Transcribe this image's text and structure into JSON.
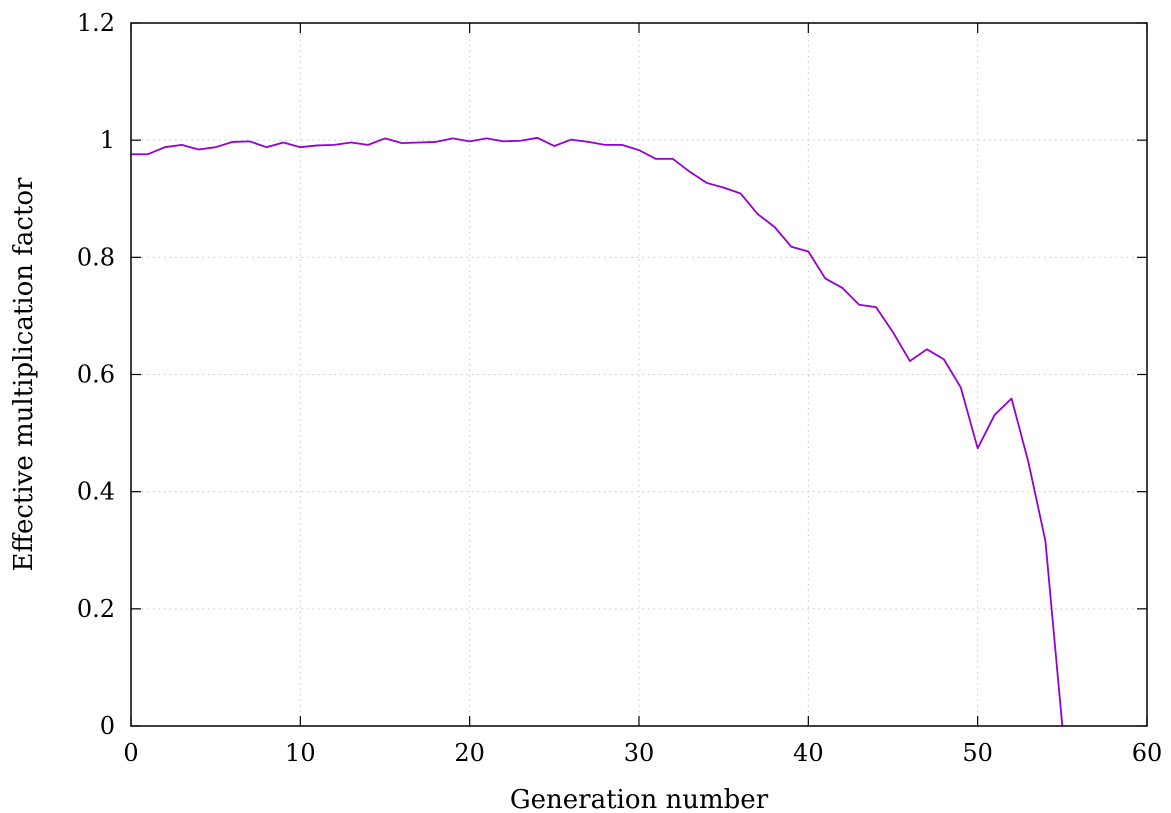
{
  "chart_data": {
    "type": "line",
    "title": "",
    "xlabel": "Generation number",
    "ylabel": "Effective multiplication factor",
    "xlim": [
      0,
      60
    ],
    "ylim": [
      0,
      1.2
    ],
    "xticks": [
      0,
      10,
      20,
      30,
      40,
      50,
      60
    ],
    "yticks": [
      0,
      0.2,
      0.4,
      0.6,
      0.8,
      1,
      1.2
    ],
    "xtick_labels": [
      "0",
      "10",
      "20",
      "30",
      "40",
      "50",
      "60"
    ],
    "ytick_labels": [
      "0",
      "0.2",
      "0.4",
      "0.6",
      "0.8",
      "1",
      "1.2"
    ],
    "grid": true,
    "legend": "none",
    "series": [
      {
        "color": "#9400d3",
        "x": [
          0,
          1,
          2,
          3,
          4,
          5,
          6,
          7,
          8,
          9,
          10,
          11,
          12,
          13,
          14,
          15,
          16,
          17,
          18,
          19,
          20,
          21,
          22,
          23,
          24,
          25,
          26,
          27,
          28,
          29,
          30,
          31,
          32,
          33,
          34,
          35,
          36,
          37,
          38,
          39,
          40,
          41,
          42,
          43,
          44,
          45,
          46,
          47,
          48,
          49,
          50,
          51,
          52,
          53,
          54,
          55
        ],
        "y": [
          0.976,
          0.976,
          0.988,
          0.992,
          0.984,
          0.988,
          0.997,
          0.998,
          0.988,
          0.996,
          0.988,
          0.991,
          0.992,
          0.996,
          0.992,
          1.003,
          0.995,
          0.996,
          0.997,
          1.003,
          0.998,
          1.003,
          0.998,
          0.999,
          1.004,
          0.99,
          1.001,
          0.997,
          0.992,
          0.992,
          0.983,
          0.968,
          0.968,
          0.946,
          0.927,
          0.919,
          0.909,
          0.874,
          0.852,
          0.818,
          0.81,
          0.764,
          0.748,
          0.719,
          0.715,
          0.672,
          0.623,
          0.643,
          0.626,
          0.578,
          0.474,
          0.531,
          0.559,
          0.45,
          0.316,
          0.0
        ]
      }
    ]
  }
}
